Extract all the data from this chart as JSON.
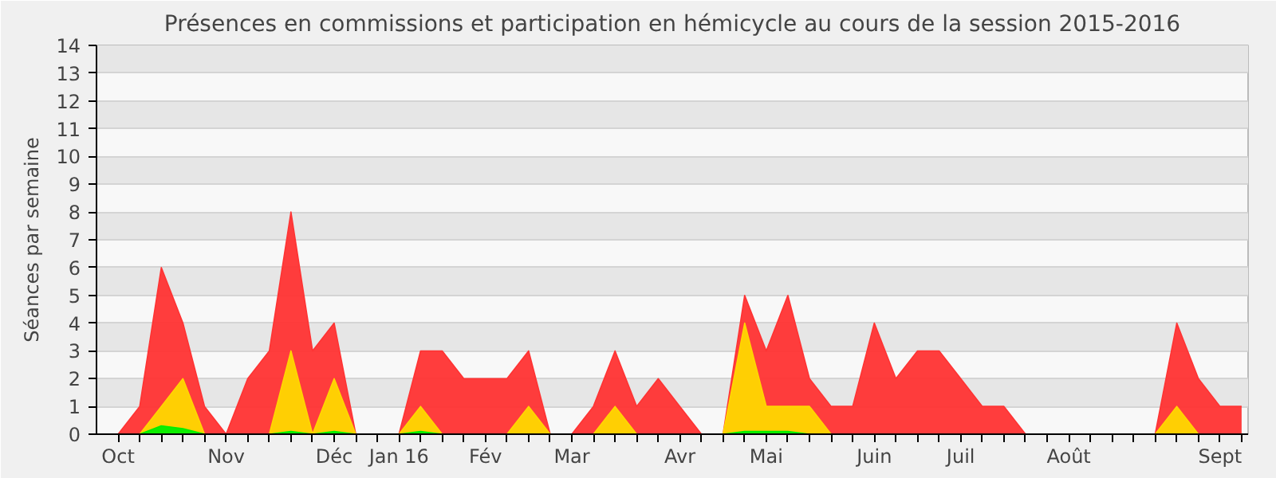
{
  "chart_data": {
    "type": "area",
    "title": "Présences en commissions et participation en hémicycle au cours de la session 2015-2016",
    "ylabel": "Séances par semaine",
    "categories": [
      "Oct",
      null,
      null,
      null,
      null,
      "Nov",
      null,
      null,
      null,
      null,
      "Déc",
      null,
      null,
      "Jan 16",
      null,
      null,
      null,
      "Fév",
      null,
      null,
      null,
      "Mar",
      null,
      null,
      null,
      null,
      "Avr",
      null,
      null,
      null,
      "Mai",
      null,
      null,
      null,
      null,
      "Juin",
      null,
      null,
      null,
      "Juil",
      null,
      null,
      null,
      null,
      "Août",
      null,
      null,
      null,
      null,
      null,
      null,
      "Sept",
      null
    ],
    "series": [
      {
        "color": "#ff3333",
        "values": [
          0,
          1,
          6,
          4,
          1,
          0,
          2,
          3,
          8,
          3,
          4,
          0,
          0,
          0,
          3,
          3,
          2,
          2,
          2,
          3,
          0,
          0,
          1,
          3,
          1,
          2,
          1,
          0,
          0,
          5,
          3,
          5,
          2,
          1,
          1,
          4,
          2,
          3,
          3,
          2,
          1,
          1,
          0,
          0,
          0,
          0,
          0,
          0,
          0,
          4,
          2,
          1,
          1
        ]
      },
      {
        "color": "#ffd700",
        "values": [
          0,
          0,
          1,
          2,
          0,
          0,
          0,
          0,
          3,
          0,
          2,
          0,
          0,
          0,
          1,
          0,
          0,
          0,
          0,
          1,
          0,
          0,
          0,
          1,
          0,
          0,
          0,
          0,
          0,
          4,
          1,
          1,
          1,
          0,
          0,
          0,
          0,
          0,
          0,
          0,
          0,
          0,
          0,
          0,
          0,
          0,
          0,
          0,
          0,
          1,
          0,
          0,
          0
        ]
      },
      {
        "color": "#00ee00",
        "values": [
          0,
          0,
          0.3,
          0.2,
          0,
          0,
          0,
          0,
          0.1,
          0,
          0.1,
          0,
          0,
          0,
          0.1,
          0,
          0,
          0,
          0,
          0,
          0,
          0,
          0,
          0,
          0,
          0,
          0,
          0,
          0,
          0.1,
          0.1,
          0.1,
          0,
          0,
          0,
          0,
          0,
          0,
          0,
          0,
          0,
          0,
          0,
          0,
          0,
          0,
          0,
          0,
          0,
          0,
          0,
          0,
          0
        ]
      }
    ],
    "ylim": [
      0,
      14
    ],
    "yticks": [
      0,
      1,
      2,
      3,
      4,
      5,
      6,
      7,
      8,
      9,
      10,
      11,
      12,
      13,
      14
    ],
    "grid": "y"
  }
}
